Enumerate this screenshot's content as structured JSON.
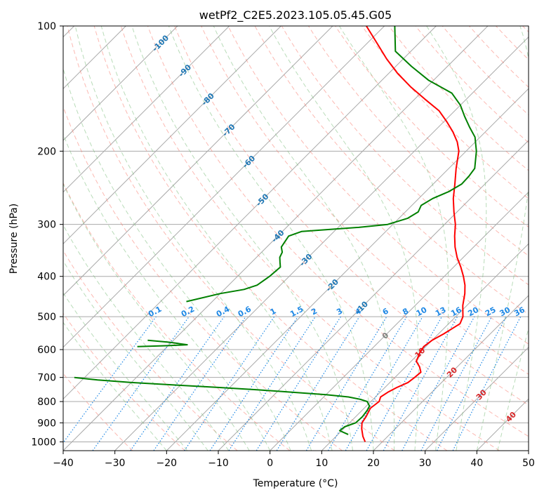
{
  "chart_data": {
    "type": "line",
    "title": "wetPf2_C2E5.2023.105.05.45.G05",
    "xlabel": "Temperature (°C)",
    "ylabel": "Pressure (hPa)",
    "xlim": [
      -40,
      50
    ],
    "ylim": [
      1050,
      100
    ],
    "y_scale": "log",
    "x_ticks": [
      -40,
      -30,
      -20,
      -10,
      0,
      10,
      20,
      30,
      40,
      50
    ],
    "y_ticks": [
      100,
      200,
      300,
      400,
      500,
      600,
      700,
      800,
      900,
      1000
    ],
    "grid": "on",
    "skew_degrees": 45,
    "series": [
      {
        "color": "#ff0000",
        "points": [
          [
            1000,
            16.7
          ],
          [
            970,
            15.2
          ],
          [
            930,
            13.5
          ],
          [
            900,
            12.4
          ],
          [
            870,
            12.0
          ],
          [
            830,
            11.2
          ],
          [
            800,
            11.6
          ],
          [
            780,
            11.0
          ],
          [
            760,
            11.5
          ],
          [
            740,
            12.3
          ],
          [
            720,
            13.5
          ],
          [
            700,
            13.8
          ],
          [
            680,
            14.0
          ],
          [
            660,
            12.7
          ],
          [
            640,
            11.0
          ],
          [
            610,
            10.0
          ],
          [
            590,
            9.6
          ],
          [
            570,
            10.0
          ],
          [
            550,
            11.0
          ],
          [
            520,
            12.2
          ],
          [
            500,
            11.4
          ],
          [
            470,
            9.2
          ],
          [
            440,
            7.3
          ],
          [
            420,
            5.7
          ],
          [
            400,
            3.7
          ],
          [
            380,
            1.4
          ],
          [
            360,
            -1.2
          ],
          [
            340,
            -3.6
          ],
          [
            320,
            -5.8
          ],
          [
            300,
            -7.9
          ],
          [
            280,
            -10.6
          ],
          [
            260,
            -13.3
          ],
          [
            240,
            -15.8
          ],
          [
            220,
            -18.6
          ],
          [
            200,
            -21.4
          ],
          [
            190,
            -23.5
          ],
          [
            180,
            -26.2
          ],
          [
            170,
            -29.4
          ],
          [
            160,
            -33.0
          ],
          [
            150,
            -38.0
          ],
          [
            140,
            -43.2
          ],
          [
            130,
            -48.3
          ],
          [
            120,
            -53.2
          ],
          [
            110,
            -58.1
          ],
          [
            100,
            -63.5
          ]
        ]
      },
      {
        "color": "#008000",
        "points": [
          [
            960,
            12.0
          ],
          [
            940,
            9.6
          ],
          [
            920,
            9.8
          ],
          [
            900,
            11.2
          ],
          [
            870,
            11.3
          ],
          [
            840,
            11.0
          ],
          [
            820,
            10.6
          ],
          [
            800,
            9.3
          ],
          [
            790,
            7.5
          ],
          [
            780,
            4.8
          ],
          [
            770,
            0.0
          ],
          [
            760,
            -7.0
          ],
          [
            750,
            -14.0
          ],
          [
            740,
            -22.0
          ],
          [
            730,
            -31.0
          ],
          [
            720,
            -40.0
          ],
          [
            710,
            -47.0
          ],
          [
            700,
            -52.0
          ]
        ]
      },
      {
        "color": "#008000",
        "points": [
          [
            590,
            -45.8
          ],
          [
            587,
            -40.0
          ],
          [
            584,
            -36.5
          ],
          [
            580,
            -38.5
          ],
          [
            576,
            -40.5
          ],
          [
            570,
            -45.0
          ]
        ]
      },
      {
        "color": "#008000",
        "points": [
          [
            460,
            -45.0
          ],
          [
            440,
            -40.0
          ],
          [
            430,
            -36.2
          ],
          [
            420,
            -34.5
          ],
          [
            400,
            -33.8
          ],
          [
            380,
            -33.5
          ],
          [
            370,
            -34.5
          ],
          [
            360,
            -35.5
          ],
          [
            350,
            -36.0
          ],
          [
            340,
            -37.2
          ],
          [
            320,
            -37.9
          ],
          [
            312,
            -36.3
          ],
          [
            310,
            -33.5
          ],
          [
            305,
            -26.0
          ],
          [
            300,
            -21.0
          ],
          [
            290,
            -18.3
          ],
          [
            280,
            -17.5
          ],
          [
            270,
            -18.2
          ],
          [
            260,
            -17.3
          ],
          [
            250,
            -15.5
          ],
          [
            240,
            -14.5
          ],
          [
            230,
            -14.6
          ],
          [
            220,
            -15.0
          ],
          [
            200,
            -18.0
          ],
          [
            185,
            -21.0
          ],
          [
            175,
            -24.0
          ],
          [
            165,
            -27.0
          ],
          [
            155,
            -30.0
          ],
          [
            145,
            -34.0
          ],
          [
            135,
            -41.0
          ],
          [
            125,
            -47.0
          ],
          [
            115,
            -53.0
          ],
          [
            100,
            -58.0
          ]
        ]
      }
    ],
    "dry_adiabat_labels": [
      "-100",
      "-90",
      "-80",
      "-70",
      "-60",
      "-50",
      "-40",
      "-30",
      "-20",
      "-10"
    ],
    "moist_adiabat_labels": [
      "0",
      "10",
      "20",
      "30",
      "40"
    ],
    "mixing_ratio_labels": [
      "0.1",
      "0.2",
      "0.4",
      "0.6",
      "1",
      "1.5",
      "2",
      "3",
      "4",
      "6",
      "8",
      "10",
      "13",
      "16",
      "20",
      "25",
      "30",
      "36"
    ]
  },
  "colors": {
    "temperature": "#ff0000",
    "dewpoint": "#008000",
    "isotherm": "#a9a9a9",
    "dry_adiabat": "#fa8072",
    "moist_adiabat": "#7fbf7f",
    "mixing_ratio": "#1e88e5",
    "dry_label": "#1f77b4",
    "moist_label": "#d62728"
  }
}
